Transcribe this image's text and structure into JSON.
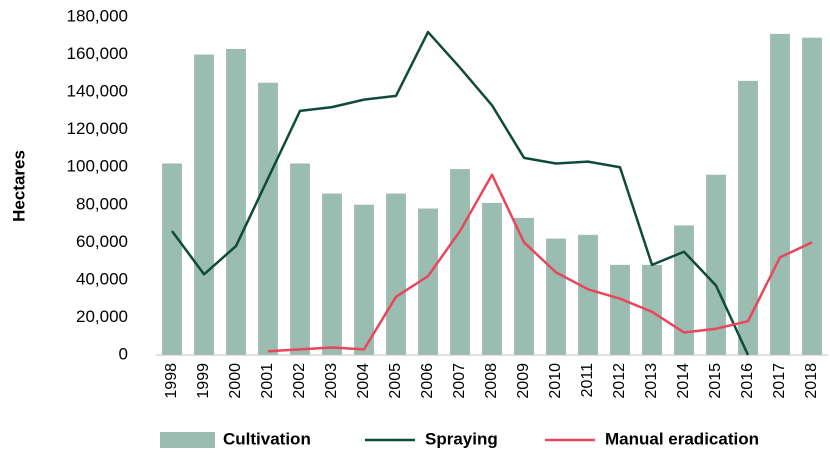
{
  "chart_data": {
    "type": "combo",
    "y_label": "Hectares",
    "categories": [
      "1998",
      "1999",
      "2000",
      "2001",
      "2002",
      "2003",
      "2004",
      "2005",
      "2006",
      "2007",
      "2008",
      "2009",
      "2010",
      "2011",
      "2012",
      "2013",
      "2014",
      "2015",
      "2016",
      "2017",
      "2018"
    ],
    "series": [
      {
        "name": "Cultivation",
        "type": "bar",
        "color": "#9bbcb0",
        "values": [
          102000,
          160000,
          163000,
          145000,
          102000,
          86000,
          80000,
          86000,
          78000,
          99000,
          81000,
          73000,
          62000,
          64000,
          48000,
          48000,
          69000,
          96000,
          146000,
          171000,
          169000
        ]
      },
      {
        "name": "Spraying",
        "type": "line",
        "color": "#0f4b3c",
        "values": [
          66000,
          43000,
          58000,
          94000,
          130000,
          132000,
          136000,
          138000,
          172000,
          153000,
          133000,
          105000,
          102000,
          103000,
          100000,
          48000,
          55000,
          37000,
          0,
          null,
          null
        ]
      },
      {
        "name": "Manual eradication",
        "type": "line",
        "color": "#e8465a",
        "values": [
          null,
          null,
          null,
          2000,
          3000,
          4000,
          3000,
          31000,
          42000,
          66000,
          96000,
          60000,
          44000,
          35000,
          30000,
          23000,
          12000,
          14000,
          18000,
          52000,
          60000
        ]
      }
    ],
    "ylim": [
      0,
      180000
    ],
    "yticks": [
      0,
      {
        "value": 20000,
        "label": "20,000"
      },
      {
        "value": 40000,
        "label": "40,000"
      },
      {
        "value": 60000,
        "label": "60,000"
      },
      {
        "value": 80000,
        "label": "80,000"
      },
      {
        "value": 100000,
        "label": "100,000"
      },
      {
        "value": 120000,
        "label": "120,000"
      },
      {
        "value": 140000,
        "label": "140,000"
      },
      {
        "value": 160000,
        "label": "160,000"
      },
      {
        "value": 180000,
        "label": "180,000"
      }
    ],
    "grid": false,
    "legend": "bottom"
  }
}
